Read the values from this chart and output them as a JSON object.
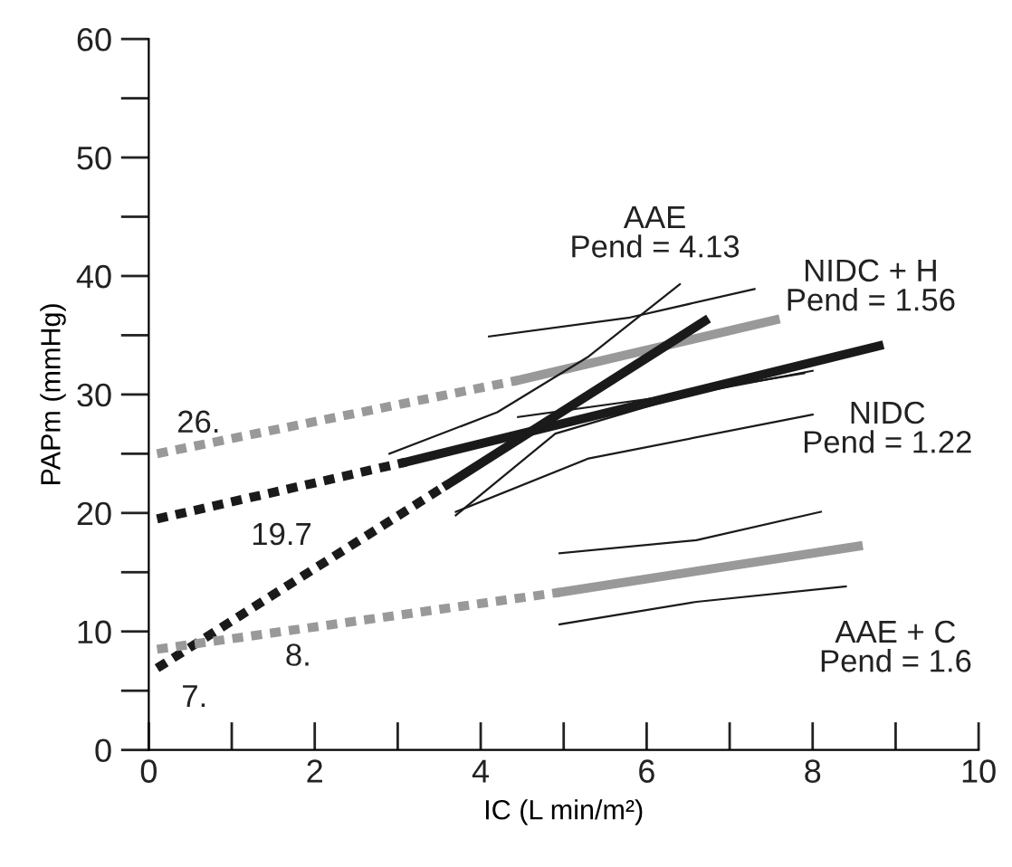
{
  "chart_data": {
    "type": "line",
    "xlabel": "IC (L min/m²)",
    "ylabel": "PAPm (mmHg)",
    "xlim": [
      0,
      10
    ],
    "ylim": [
      0,
      60
    ],
    "xticks": [
      0,
      {
        "value": 1,
        "label": null
      },
      2,
      {
        "value": 3,
        "label": null
      },
      4,
      {
        "value": 5,
        "label": null
      },
      6,
      {
        "value": 7,
        "label": null
      },
      8,
      {
        "value": 9,
        "label": null
      },
      10
    ],
    "yticks": [
      0,
      {
        "value": 5,
        "label": null
      },
      10,
      {
        "value": 15,
        "label": null
      },
      20,
      {
        "value": 25,
        "label": null
      },
      30,
      {
        "value": 35,
        "label": null
      },
      40,
      {
        "value": 45,
        "label": null
      },
      50,
      {
        "value": 55,
        "label": null
      },
      60
    ],
    "grid": false,
    "legend": false,
    "series": [
      {
        "color": "#999999",
        "line_style": "dotted",
        "x": [
          0.1,
          4.45
        ],
        "values": [
          25.0,
          31.2
        ]
      },
      {
        "color": "#1a1a1a",
        "line_style": "dotted",
        "x": [
          0.1,
          3.1
        ],
        "values": [
          19.5,
          24.3
        ]
      },
      {
        "color": "#1a1a1a",
        "line_style": "dotted",
        "x": [
          0.1,
          3.6
        ],
        "values": [
          6.9,
          22.4
        ]
      },
      {
        "color": "#999999",
        "line_style": "dotted",
        "x": [
          0.1,
          4.95
        ],
        "values": [
          8.5,
          13.3
        ]
      },
      {
        "color": "#999999",
        "line_style": "solid",
        "x": [
          4.45,
          7.55
        ],
        "values": [
          31.2,
          36.3
        ]
      },
      {
        "color": "#1a1a1a",
        "line_style": "solid",
        "x": [
          3.1,
          8.8
        ],
        "values": [
          24.3,
          34.1
        ]
      },
      {
        "color": "#1a1a1a",
        "line_style": "solid",
        "x": [
          3.6,
          6.7
        ],
        "values": [
          22.4,
          36.2
        ]
      },
      {
        "color": "#999999",
        "line_style": "solid",
        "x": [
          4.95,
          8.55
        ],
        "values": [
          13.3,
          17.2
        ]
      },
      {
        "color": "#1a1a1a",
        "line_style": "solid",
        "x": [
          2.9,
          4.2,
          5.3,
          6.4
        ],
        "values": [
          25.0,
          28.5,
          33.2,
          39.3
        ]
      },
      {
        "color": "#1a1a1a",
        "line_style": "solid",
        "x": [
          3.7,
          4.9,
          6.5,
          8.0
        ],
        "values": [
          19.8,
          26.7,
          30.0,
          32.0
        ]
      },
      {
        "color": "#1a1a1a",
        "line_style": "solid",
        "x": [
          4.1,
          5.8,
          7.3
        ],
        "values": [
          34.9,
          36.5,
          38.9
        ]
      },
      {
        "color": "#1a1a1a",
        "line_style": "solid",
        "x": [
          4.45,
          6.2,
          7.9
        ],
        "values": [
          28.1,
          29.8,
          31.8
        ]
      },
      {
        "color": "#1a1a1a",
        "line_style": "solid",
        "x": [
          3.7,
          5.3,
          8.0
        ],
        "values": [
          20.1,
          24.6,
          28.3
        ]
      },
      {
        "color": "#1a1a1a",
        "line_style": "solid",
        "x": [
          4.95,
          6.6,
          8.1
        ],
        "values": [
          16.6,
          17.7,
          20.1
        ]
      },
      {
        "color": "#1a1a1a",
        "line_style": "solid",
        "x": [
          4.95,
          6.6,
          8.4
        ],
        "values": [
          10.6,
          12.5,
          13.8
        ]
      }
    ],
    "annotations": [
      "26.",
      "19.7",
      "8.",
      "7.",
      "AAE\nPend = 4.13",
      "NIDC + H\nPend = 1.56",
      "NIDC\nPend = 1.22",
      "AAE + C\nPend = 1.6"
    ]
  }
}
